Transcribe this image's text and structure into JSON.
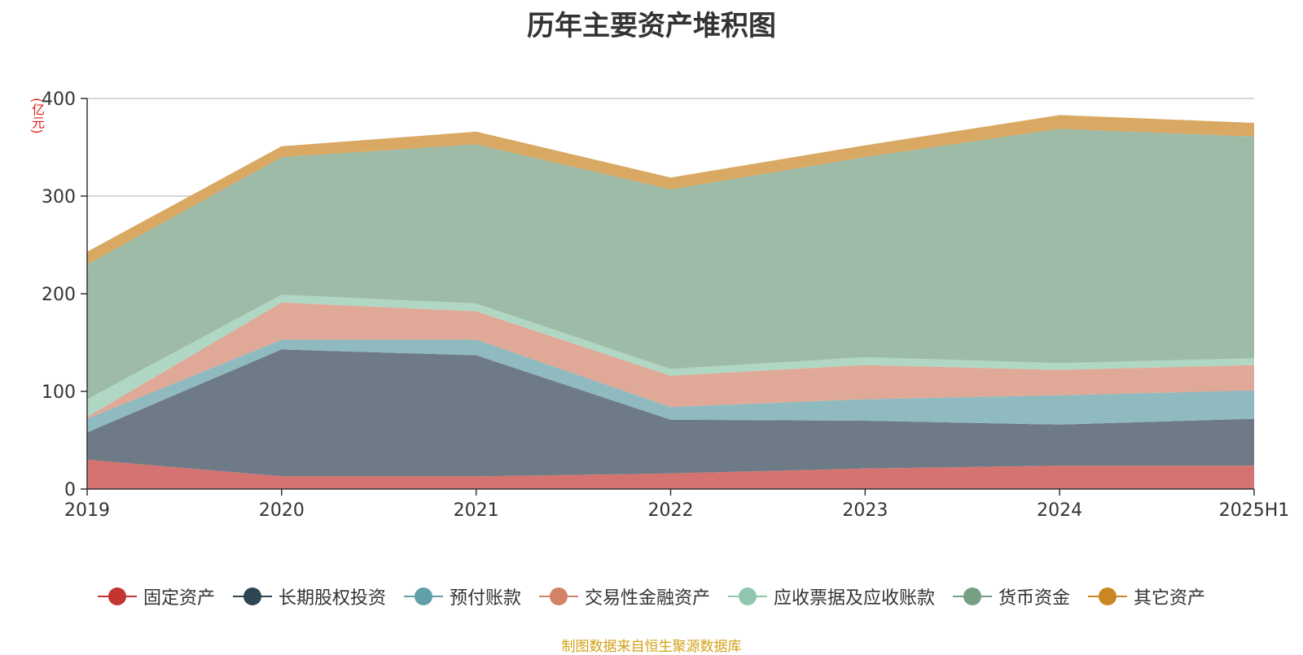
{
  "chart_data": {
    "type": "area",
    "stacked": true,
    "title": "历年主要资产堆积图",
    "unit_label": "(亿元)",
    "categories": [
      "2019",
      "2020",
      "2021",
      "2022",
      "2023",
      "2024",
      "2025H1"
    ],
    "y_ticks": [
      "0",
      "100",
      "200",
      "300",
      "400"
    ],
    "ylim": [
      0,
      400
    ],
    "grid": true,
    "legend_position": "bottom",
    "series": [
      {
        "name": "固定资产",
        "color": "#c23531",
        "fill": "#d4736f",
        "values": [
          30,
          13,
          13,
          16,
          21,
          24,
          24
        ]
      },
      {
        "name": "长期股权投资",
        "color": "#2f4554",
        "fill": "#6e7b86",
        "values": [
          28,
          130,
          124,
          55,
          49,
          42,
          48
        ]
      },
      {
        "name": "预付账款",
        "color": "#61a0a8",
        "fill": "#8fbabf",
        "values": [
          14,
          10,
          16,
          13,
          22,
          30,
          29
        ]
      },
      {
        "name": "交易性金融资产",
        "color": "#d48265",
        "fill": "#e0a896",
        "values": [
          2,
          38,
          29,
          32,
          35,
          26,
          26
        ]
      },
      {
        "name": "应收票据及应收账款",
        "color": "#91c7ae",
        "fill": "#b0d6c4",
        "values": [
          18,
          8,
          8,
          7,
          8,
          7,
          7
        ]
      },
      {
        "name": "货币资金",
        "color": "#749f83",
        "fill": "#9ebba7",
        "values": [
          138,
          141,
          163,
          184,
          205,
          240,
          227
        ]
      },
      {
        "name": "其它资产",
        "color": "#ca8622",
        "fill": "#d9a862",
        "values": [
          13,
          11,
          13,
          12,
          12,
          14,
          14
        ]
      }
    ]
  },
  "source_note": "制图数据来自恒生聚源数据库"
}
